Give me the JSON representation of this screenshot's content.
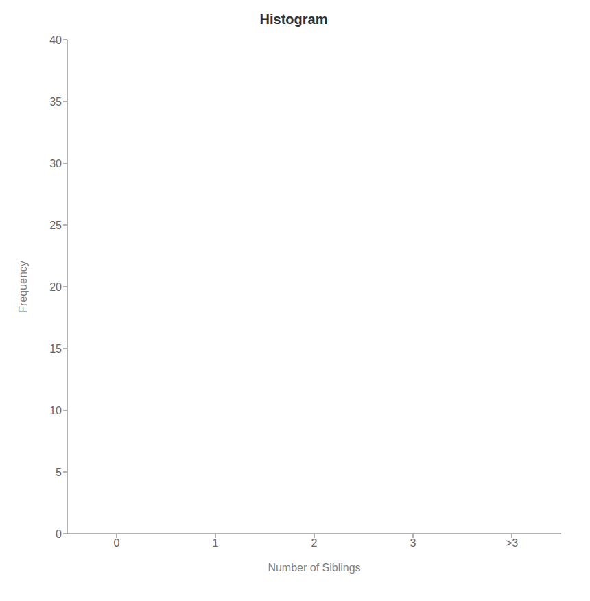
{
  "chart_data": {
    "type": "bar",
    "title": "Histogram",
    "xlabel": "Number of Siblings",
    "ylabel": "Frequency",
    "categories": [
      "0",
      "1",
      "2",
      "3",
      ">3"
    ],
    "values": [
      0,
      0,
      0,
      0,
      0
    ],
    "ylim": [
      0,
      40
    ],
    "yticks": [
      0,
      5,
      10,
      15,
      20,
      25,
      30,
      35,
      40
    ],
    "grid": false
  }
}
